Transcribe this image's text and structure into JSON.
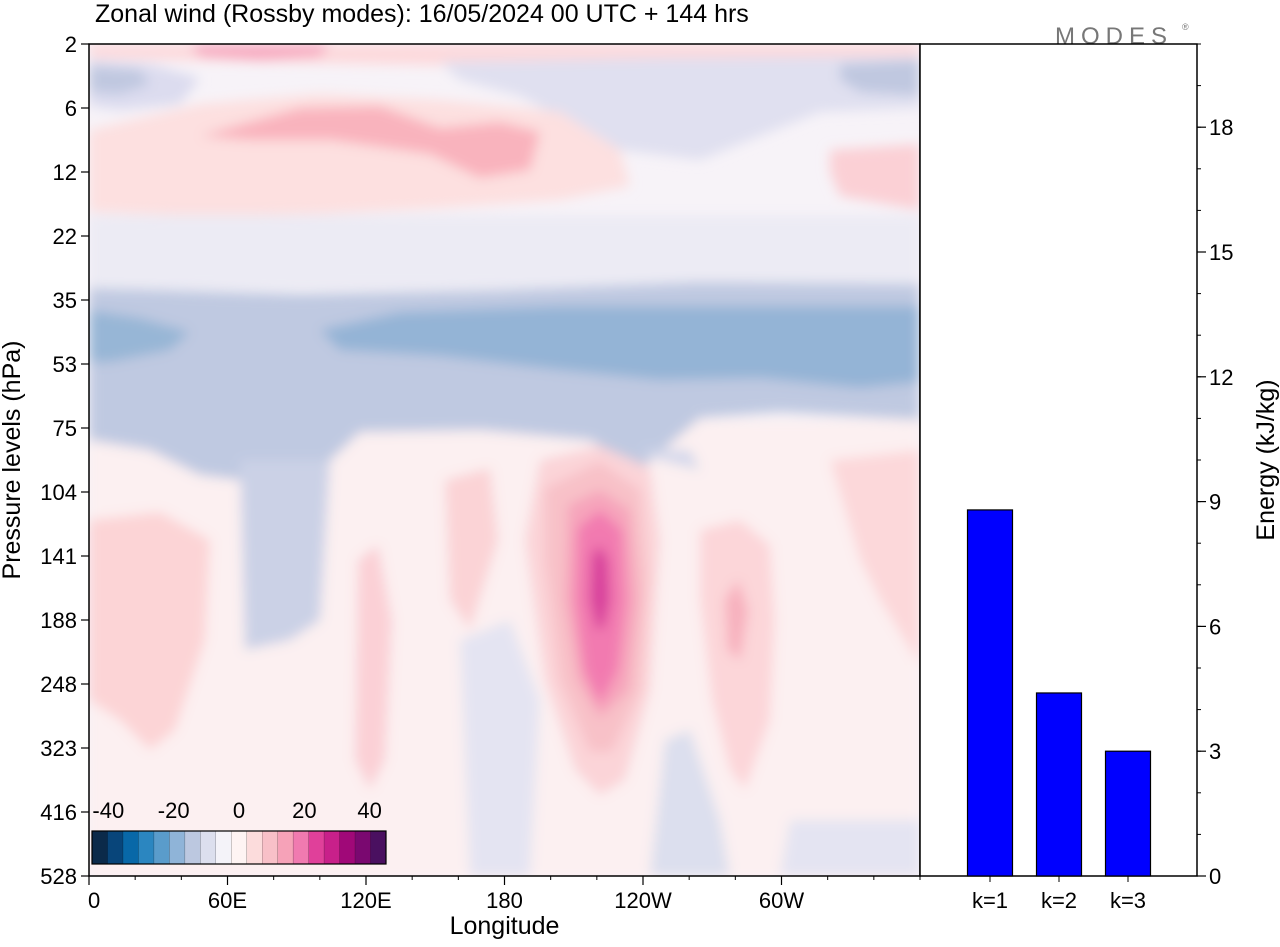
{
  "title": "Zonal wind (Rossby modes):  16/05/2024  00 UTC  + 144 hrs",
  "logo": "MODES",
  "logo_mark": "®",
  "chart_data": [
    {
      "type": "heatmap",
      "variable": "Zonal wind",
      "xlabel": "Longitude",
      "ylabel": "Pressure levels (hPa)",
      "x_ticks": [
        "0",
        "60E",
        "120E",
        "180",
        "120W",
        "60W"
      ],
      "x_tick_degrees": [
        0,
        60,
        120,
        180,
        240,
        300
      ],
      "xlim": [
        0,
        360
      ],
      "y_ticks": [
        2,
        6,
        12,
        22,
        35,
        53,
        75,
        104,
        141,
        188,
        248,
        323,
        416,
        528
      ],
      "colorbar": {
        "labels": [
          "-40",
          "-20",
          "0",
          "20",
          "40"
        ],
        "range": [
          -45,
          45
        ],
        "colors": [
          "#0b2a4a",
          "#08457a",
          "#0868a8",
          "#2b86c0",
          "#5a9ccb",
          "#8fb4d8",
          "#bcc8e0",
          "#dcdfee",
          "#f4f3f9",
          "#fef4f3",
          "#fcdcdc",
          "#f8c0c8",
          "#f6a2b8",
          "#f07ab0",
          "#e0409a",
          "#c8208a",
          "#a00878",
          "#7a0870",
          "#4a1060"
        ]
      },
      "features": [
        {
          "name": "stratospheric easterly band",
          "lon_range": [
            0,
            360
          ],
          "level_range": [
            35,
            75
          ],
          "u_min": -25
        },
        {
          "name": "westerly jet core",
          "lon_center": 221,
          "level": 141,
          "u_max": 35
        },
        {
          "name": "upper stratosphere westerlies",
          "lon_range": [
            40,
            230
          ],
          "level_range": [
            6,
            12
          ],
          "u_max": 12
        }
      ]
    },
    {
      "type": "bar",
      "categories": [
        "k=1",
        "k=2",
        "k=3"
      ],
      "values": [
        8.8,
        4.4,
        3.0
      ],
      "ylabel": "Energy (kJ/kg)",
      "ylim": [
        0,
        20
      ],
      "y_ticks": [
        0,
        3,
        6,
        9,
        12,
        15,
        18
      ],
      "color": "#0000ff"
    }
  ]
}
